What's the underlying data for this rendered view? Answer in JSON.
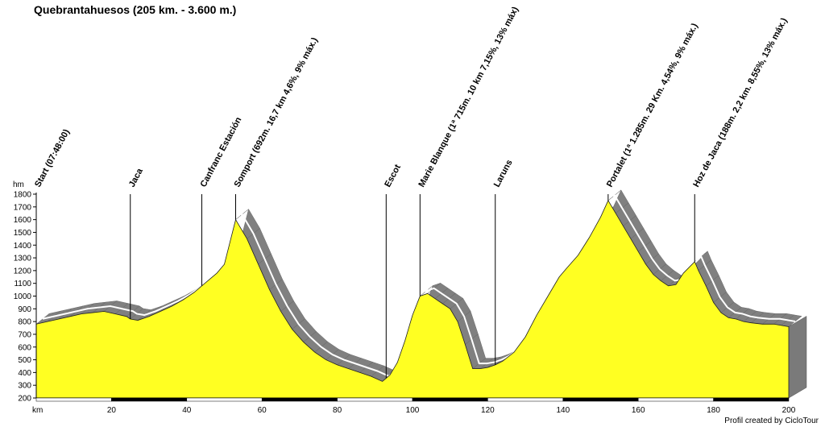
{
  "chart_data": {
    "type": "area",
    "title": "Quebrantahuesos (205 km. - 3.600 m.)",
    "xlabel": "km",
    "ylabel": "hm",
    "xlim": [
      0,
      200
    ],
    "ylim": [
      200,
      1800
    ],
    "x_ticks": [
      20,
      40,
      60,
      80,
      100,
      120,
      140,
      160,
      180,
      200
    ],
    "y_ticks": [
      200,
      300,
      400,
      500,
      600,
      700,
      800,
      900,
      1000,
      1100,
      1200,
      1300,
      1400,
      1500,
      1600,
      1700,
      1800
    ],
    "fill_color": "#ffff22",
    "shadow_color": "#808080",
    "grid": false,
    "series": [
      {
        "x": [
          0,
          3,
          6,
          9,
          12,
          15,
          18,
          21,
          24,
          25,
          27,
          30,
          33,
          36,
          39,
          42,
          44,
          46,
          48,
          50,
          53,
          56,
          59,
          62,
          65,
          68,
          71,
          74,
          77,
          80,
          83,
          86,
          89,
          92,
          94,
          96,
          98,
          100,
          102,
          104,
          106,
          108,
          110,
          112,
          114,
          116,
          118,
          120,
          122,
          124,
          127,
          130,
          133,
          136,
          139,
          141,
          144,
          147,
          150,
          152,
          154,
          156,
          158,
          160,
          162,
          164,
          166,
          168,
          170,
          172,
          174,
          175,
          176,
          178,
          180,
          182,
          184,
          186,
          188,
          190,
          193,
          196,
          198,
          200
        ],
        "y": [
          780,
          800,
          820,
          840,
          860,
          870,
          880,
          860,
          840,
          820,
          810,
          840,
          880,
          920,
          970,
          1030,
          1080,
          1130,
          1180,
          1250,
          1600,
          1450,
          1250,
          1050,
          880,
          740,
          640,
          560,
          500,
          460,
          430,
          400,
          370,
          330,
          380,
          480,
          650,
          850,
          1000,
          1020,
          980,
          940,
          900,
          800,
          620,
          430,
          430,
          440,
          460,
          490,
          560,
          680,
          850,
          1000,
          1150,
          1220,
          1320,
          1460,
          1620,
          1750,
          1650,
          1550,
          1450,
          1350,
          1250,
          1170,
          1120,
          1080,
          1090,
          1180,
          1240,
          1270,
          1200,
          1080,
          950,
          870,
          830,
          820,
          800,
          790,
          780,
          780,
          770,
          760
        ]
      }
    ],
    "waypoints": [
      {
        "km": 0,
        "label": "Start (07:48:00)",
        "line": false
      },
      {
        "km": 25,
        "label": "Jaca",
        "line": true
      },
      {
        "km": 44,
        "label": "Canfranc Estación",
        "line": true
      },
      {
        "km": 53,
        "label": "Somport (692m. 16,7 km 4,6%, 9% máx.)",
        "line": true
      },
      {
        "km": 93,
        "label": "Escot",
        "line": true
      },
      {
        "km": 102,
        "label": "Marie Blanque (1ª 715m. 10 km 7,15%, 13% máx)",
        "line": true
      },
      {
        "km": 122,
        "label": "Laruns",
        "line": true
      },
      {
        "km": 152,
        "label": "Portalet (1ª 1.285m. 29 Km. 4,54%, 9% máx.)",
        "line": true
      },
      {
        "km": 175,
        "label": "Hoz de Jaca (188m. 2,2 km. 8,55%, 13% máx.)",
        "line": true
      }
    ],
    "credit": "Profil created by CicloTour"
  }
}
